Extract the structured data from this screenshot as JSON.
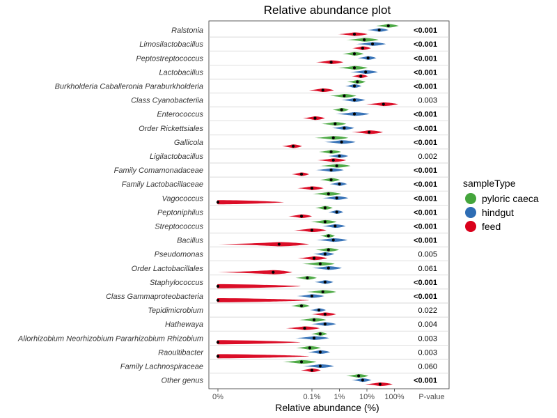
{
  "colors": {
    "pyloric caeca": "#44a53c",
    "hindgut": "#2e6db4",
    "feed": "#d9001b"
  },
  "chart_data": {
    "type": "violin",
    "title": "Relative abundance plot",
    "xlabel": "Relative abundance (%)",
    "x_scale": "log-like (0% included)",
    "x_ticks": [
      "0%",
      "0.1%",
      "1%",
      "10%",
      "100%"
    ],
    "pvalue_header": "P-value",
    "legend_title": "sampleType",
    "legend_placement": "right",
    "series": [
      "pyloric caeca",
      "hindgut",
      "feed"
    ],
    "rows": [
      {
        "genus": "Ralstonia",
        "p": "<0.001",
        "sig": true,
        "g": {
          "pyloric caeca": 60,
          "hindgut": 28,
          "feed": 3.5
        }
      },
      {
        "genus": "Limosilactobacillus",
        "p": "<0.001",
        "sig": true,
        "g": {
          "pyloric caeca": 8,
          "hindgut": 16,
          "feed": 7
        }
      },
      {
        "genus": "Peptostreptococcus",
        "p": "<0.001",
        "sig": true,
        "g": {
          "pyloric caeca": 3.5,
          "hindgut": 11,
          "feed": 0.5
        }
      },
      {
        "genus": "Lactobacillus",
        "p": "<0.001",
        "sig": true,
        "g": {
          "pyloric caeca": 3.5,
          "hindgut": 9,
          "feed": 6
        }
      },
      {
        "genus": "Burkholderia Caballeronia Paraburkholderia",
        "p": "<0.001",
        "sig": true,
        "g": {
          "pyloric caeca": 4.5,
          "hindgut": 3.5,
          "feed": 0.25
        }
      },
      {
        "genus": "Class Cyanobacteriia",
        "p": "0.003",
        "sig": false,
        "g": {
          "pyloric caeca": 1.5,
          "hindgut": 3.5,
          "feed": 40
        }
      },
      {
        "genus": "Enterococcus",
        "p": "<0.001",
        "sig": true,
        "g": {
          "pyloric caeca": 1.2,
          "hindgut": 3.5,
          "feed": 0.13
        }
      },
      {
        "genus": "Order Rickettsiales",
        "p": "<0.001",
        "sig": true,
        "g": {
          "pyloric caeca": 0.7,
          "hindgut": 1.5,
          "feed": 12
        }
      },
      {
        "genus": "Gallicola",
        "p": "<0.001",
        "sig": true,
        "g": {
          "pyloric caeca": 0.6,
          "hindgut": 1.2,
          "feed": 0.04
        }
      },
      {
        "genus": "Ligilactobacillus",
        "p": "0.002",
        "sig": false,
        "g": {
          "pyloric caeca": 0.5,
          "hindgut": 1.0,
          "feed": 0.6
        }
      },
      {
        "genus": "Family Comamonadaceae",
        "p": "<0.001",
        "sig": true,
        "g": {
          "pyloric caeca": 0.8,
          "hindgut": 0.5,
          "feed": 0.06
        }
      },
      {
        "genus": "Family Lactobacillaceae",
        "p": "<0.001",
        "sig": true,
        "g": {
          "pyloric caeca": 0.5,
          "hindgut": 1.0,
          "feed": 0.1
        }
      },
      {
        "genus": "Vagococcus",
        "p": "<0.001",
        "sig": true,
        "g": {
          "pyloric caeca": 0.4,
          "hindgut": 0.8,
          "feed": 0
        }
      },
      {
        "genus": "Peptoniphilus",
        "p": "<0.001",
        "sig": true,
        "g": {
          "pyloric caeca": 0.3,
          "hindgut": 0.8,
          "feed": 0.06
        }
      },
      {
        "genus": "Streptococcus",
        "p": "<0.001",
        "sig": true,
        "g": {
          "pyloric caeca": 0.3,
          "hindgut": 0.7,
          "feed": 0.1
        }
      },
      {
        "genus": "Bacillus",
        "p": "<0.001",
        "sig": true,
        "g": {
          "pyloric caeca": 0.4,
          "hindgut": 0.6,
          "feed": 0.02
        }
      },
      {
        "genus": "Pseudomonas",
        "p": "0.005",
        "sig": false,
        "g": {
          "pyloric caeca": 0.4,
          "hindgut": 0.3,
          "feed": 0.12
        }
      },
      {
        "genus": "Order Lactobacillales",
        "p": "0.061",
        "sig": false,
        "g": {
          "pyloric caeca": 0.2,
          "hindgut": 0.4,
          "feed": 0.015
        }
      },
      {
        "genus": "Staphylococcus",
        "p": "<0.001",
        "sig": true,
        "g": {
          "pyloric caeca": 0.08,
          "hindgut": 0.3,
          "feed": 0
        }
      },
      {
        "genus": "Class Gammaproteobacteria",
        "p": "<0.001",
        "sig": true,
        "g": {
          "pyloric caeca": 0.25,
          "hindgut": 0.1,
          "feed": 0
        }
      },
      {
        "genus": "Tepidimicrobium",
        "p": "0.022",
        "sig": false,
        "g": {
          "pyloric caeca": 0.06,
          "hindgut": 0.18,
          "feed": 0.3
        }
      },
      {
        "genus": "Hathewaya",
        "p": "0.004",
        "sig": false,
        "g": {
          "pyloric caeca": 0.12,
          "hindgut": 0.3,
          "feed": 0.07
        }
      },
      {
        "genus": "Allorhizobium Neorhizobium Pararhizobium Rhizobium",
        "p": "0.003",
        "sig": false,
        "g": {
          "pyloric caeca": 0.2,
          "hindgut": 0.12,
          "feed": 0
        }
      },
      {
        "genus": "Raoultibacter",
        "p": "0.003",
        "sig": false,
        "g": {
          "pyloric caeca": 0.09,
          "hindgut": 0.2,
          "feed": 0
        }
      },
      {
        "genus": "Family Lachnospiraceae",
        "p": "0.060",
        "sig": false,
        "g": {
          "pyloric caeca": 0.06,
          "hindgut": 0.2,
          "feed": 0.1
        }
      },
      {
        "genus": "Other genus",
        "p": "<0.001",
        "sig": true,
        "g": {
          "pyloric caeca": 5,
          "hindgut": 7,
          "feed": 30
        }
      }
    ]
  }
}
